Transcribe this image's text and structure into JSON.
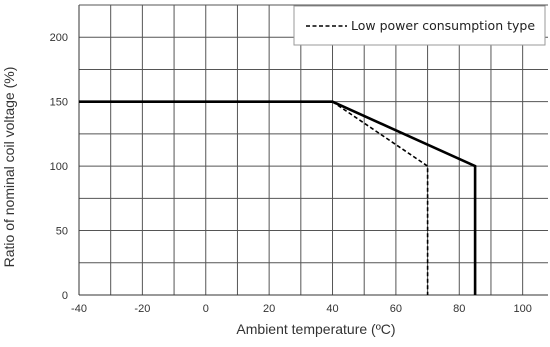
{
  "chart_data": {
    "type": "line",
    "title": "",
    "xlabel": "Ambient temperature (ºC)",
    "ylabel": "Ratio of nominal coil voltage (%)",
    "xlim": [
      -40,
      108
    ],
    "ylim": [
      0,
      225
    ],
    "xticks": [
      "-40",
      "-20",
      "0",
      "20",
      "40",
      "60",
      "80",
      "100"
    ],
    "yticks": [
      "0",
      "50",
      "100",
      "150",
      "200"
    ],
    "grid": true,
    "legend_position": "top-right",
    "series": [
      {
        "name": "",
        "style": "solid",
        "color": "#000000",
        "x": [
          -40,
          40,
          85,
          85
        ],
        "y": [
          150,
          150,
          100,
          0
        ]
      },
      {
        "name": "Low power consumption type",
        "style": "dashed",
        "color": "#000000",
        "x": [
          40,
          70,
          70
        ],
        "y": [
          150,
          100,
          0
        ]
      }
    ]
  }
}
